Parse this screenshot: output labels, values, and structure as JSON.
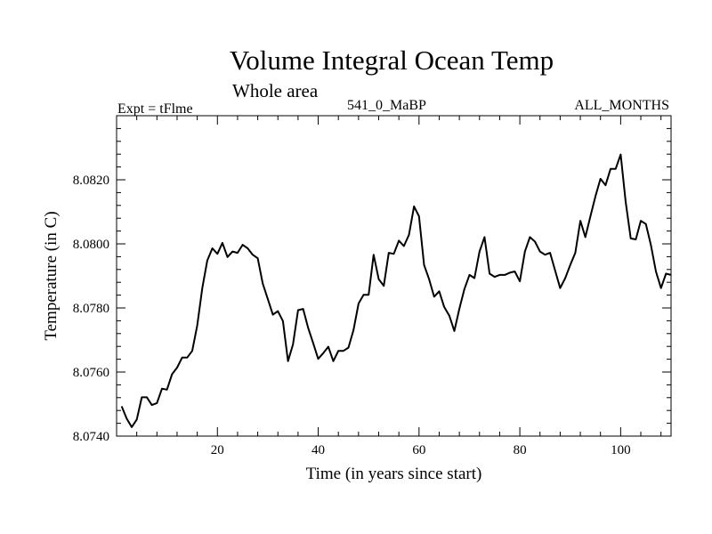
{
  "header": {
    "title": "Volume Integral Ocean Temp",
    "subtitle": "Whole area",
    "expt": "Expt = tFlme",
    "period": "541_0_MaBP",
    "months": "ALL_MONTHS"
  },
  "chart_data": {
    "type": "line",
    "xlabel": "Time (in years since start)",
    "ylabel": "Temperature (in C)",
    "xlim": [
      0,
      110
    ],
    "ylim": [
      8.074,
      8.084
    ],
    "xticks": [
      20,
      40,
      60,
      80,
      100
    ],
    "yticks": [
      8.074,
      8.076,
      8.078,
      8.08,
      8.082
    ],
    "ytick_labels": [
      "8.0740",
      "8.0760",
      "8.0780",
      "8.0800",
      "8.0820"
    ],
    "grid": false,
    "color": "#000000",
    "series": [
      {
        "name": "Volume Integral Ocean Temp",
        "x": [
          1,
          2,
          3,
          4,
          5,
          6,
          7,
          8,
          9,
          10,
          11,
          12,
          13,
          14,
          15,
          16,
          17,
          18,
          19,
          20,
          21,
          22,
          23,
          24,
          25,
          26,
          27,
          28,
          29,
          30,
          31,
          32,
          33,
          34,
          35,
          36,
          37,
          38,
          39,
          40,
          41,
          42,
          43,
          44,
          45,
          46,
          47,
          48,
          49,
          50,
          51,
          52,
          53,
          54,
          55,
          56,
          57,
          58,
          59,
          60,
          61,
          62,
          63,
          64,
          65,
          66,
          67,
          68,
          69,
          70,
          71,
          72,
          73,
          74,
          75,
          76,
          77,
          78,
          79,
          80,
          81,
          82,
          83,
          84,
          85,
          86,
          87,
          88,
          89,
          90,
          91,
          92,
          93,
          94,
          95,
          96,
          97,
          98,
          99,
          100,
          101,
          102,
          103,
          104,
          105,
          106,
          107,
          108,
          109,
          110
        ],
        "values": [
          8.07493,
          8.07455,
          8.07428,
          8.07452,
          8.07521,
          8.07521,
          8.07497,
          8.07503,
          8.07548,
          8.07545,
          8.07593,
          8.07614,
          8.07645,
          8.07645,
          8.07666,
          8.07745,
          8.07862,
          8.07948,
          8.07986,
          8.07969,
          8.08003,
          8.07959,
          8.07976,
          8.07972,
          8.07997,
          8.07986,
          8.07966,
          8.07955,
          8.07876,
          8.07828,
          8.07779,
          8.0779,
          8.07759,
          8.07634,
          8.07686,
          8.07793,
          8.07797,
          8.07738,
          8.0769,
          8.07641,
          8.07659,
          8.07679,
          8.07634,
          8.07666,
          8.07666,
          8.07676,
          8.07731,
          8.07814,
          8.07841,
          8.07841,
          8.07966,
          8.0789,
          8.07869,
          8.07972,
          8.07969,
          8.0801,
          8.07993,
          8.08028,
          8.08117,
          8.08086,
          8.07934,
          8.0789,
          8.07835,
          8.07852,
          8.07803,
          8.07776,
          8.07728,
          8.07797,
          8.07859,
          8.07903,
          8.07893,
          8.07976,
          8.08021,
          8.07907,
          8.07897,
          8.07903,
          8.07903,
          8.0791,
          8.07914,
          8.07883,
          8.07976,
          8.08021,
          8.08007,
          8.07976,
          8.07966,
          8.07972,
          8.07917,
          8.07862,
          8.07893,
          8.07934,
          8.07972,
          8.08072,
          8.08021,
          8.08086,
          8.08148,
          8.08203,
          8.08183,
          8.08234,
          8.08234,
          8.08279,
          8.08131,
          8.08017,
          8.08014,
          8.08072,
          8.08062,
          8.07997,
          8.07914,
          8.07862,
          8.07907,
          8.07903
        ]
      }
    ]
  }
}
